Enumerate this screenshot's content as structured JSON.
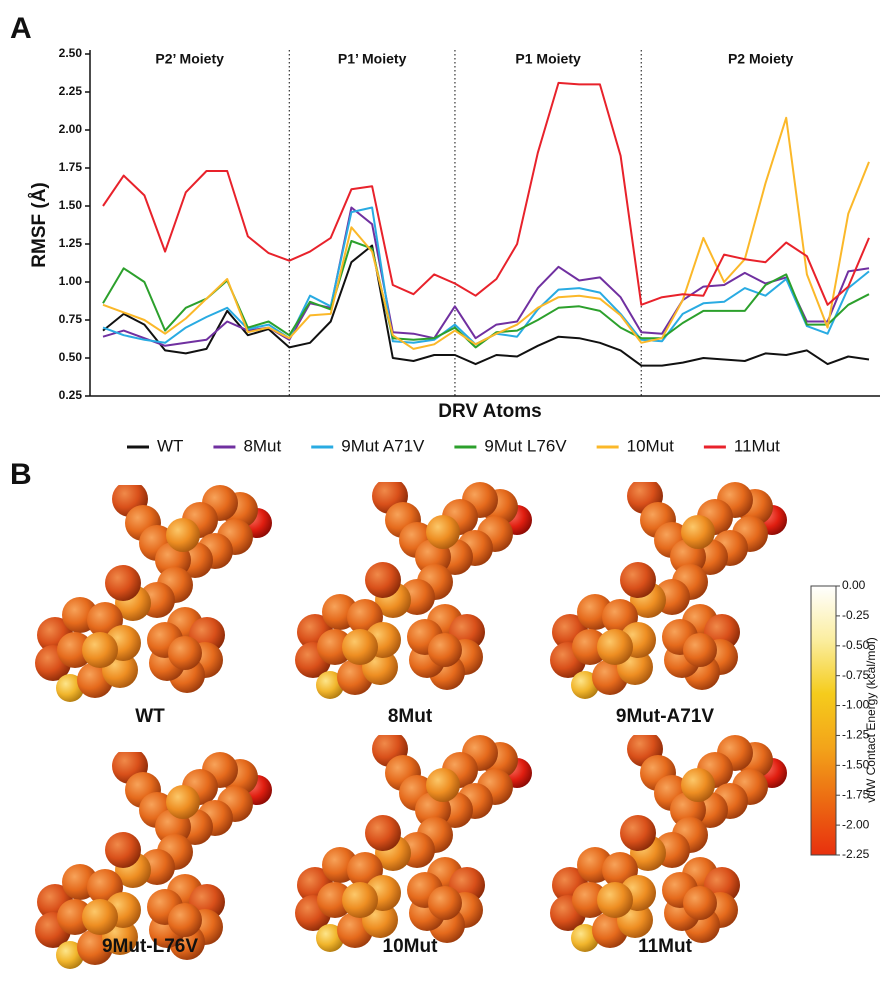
{
  "panels": {
    "a": "A",
    "b": "B"
  },
  "chart_data": [
    {
      "type": "line",
      "xlabel": "DRV Atoms",
      "ylabel": "RMSF (Å)",
      "categories": [
        null,
        null,
        null,
        null,
        null,
        null,
        null,
        null,
        null,
        null,
        null,
        null,
        null,
        null,
        null,
        null,
        null,
        null,
        null,
        null,
        null,
        null,
        null,
        null,
        null,
        null,
        null,
        null,
        null,
        null,
        null,
        null,
        null,
        null,
        null,
        null,
        null,
        null
      ],
      "sections": [
        "P2’ Moiety",
        "P1’ Moiety",
        "P1 Moiety",
        "P2 Moiety"
      ],
      "dividers": [
        9,
        17,
        26
      ],
      "ylim": [
        0.25,
        2.5
      ],
      "yticks": [
        0.25,
        {
          "value": 0.5,
          "label": "0.50"
        },
        0.75,
        {
          "value": 1,
          "label": "1.00"
        },
        1.25,
        {
          "value": 1.5,
          "label": "1.50"
        },
        1.75,
        {
          "value": 2,
          "label": "2.00"
        },
        2.25,
        {
          "value": 2.5,
          "label": "2.50"
        }
      ],
      "series": [
        {
          "name": "WT",
          "color": "#111111",
          "values": [
            0.68,
            0.79,
            0.72,
            0.55,
            0.53,
            0.56,
            0.81,
            0.65,
            0.69,
            0.57,
            0.6,
            0.74,
            1.13,
            1.24,
            0.5,
            0.48,
            0.52,
            0.52,
            0.46,
            0.52,
            0.51,
            0.58,
            0.64,
            0.63,
            0.6,
            0.55,
            0.45,
            0.45,
            0.47,
            0.5,
            0.49,
            0.48,
            0.53,
            0.52,
            0.55,
            0.46,
            0.51,
            0.49
          ]
        },
        {
          "name": "8Mut",
          "color": "#7030a0",
          "values": [
            0.64,
            0.68,
            0.63,
            0.58,
            0.6,
            0.62,
            0.74,
            0.68,
            0.7,
            0.62,
            0.86,
            0.83,
            1.49,
            1.38,
            0.67,
            0.66,
            0.63,
            0.84,
            0.63,
            0.72,
            0.74,
            0.96,
            1.1,
            1.01,
            1.03,
            0.9,
            0.67,
            0.66,
            0.88,
            0.97,
            0.98,
            1.06,
            0.99,
            1.03,
            0.74,
            0.74,
            1.07,
            1.09
          ]
        },
        {
          "name": "9Mut A71V",
          "color": "#29abe2",
          "values": [
            0.7,
            0.65,
            0.62,
            0.6,
            0.7,
            0.77,
            0.83,
            0.69,
            0.72,
            0.63,
            0.91,
            0.84,
            1.46,
            1.49,
            0.61,
            0.6,
            0.62,
            0.72,
            0.59,
            0.66,
            0.64,
            0.82,
            0.95,
            0.96,
            0.93,
            0.79,
            0.62,
            0.61,
            0.79,
            0.86,
            0.87,
            0.96,
            0.91,
            1.02,
            0.71,
            0.66,
            0.96,
            1.07
          ]
        },
        {
          "name": "9Mut L76V",
          "color": "#2ca02c",
          "values": [
            0.86,
            1.09,
            1.0,
            0.68,
            0.83,
            0.89,
            1.01,
            0.7,
            0.74,
            0.65,
            0.87,
            0.82,
            1.27,
            1.22,
            0.63,
            0.62,
            0.63,
            0.7,
            0.57,
            0.67,
            0.68,
            0.75,
            0.83,
            0.84,
            0.81,
            0.7,
            0.63,
            0.63,
            0.73,
            0.81,
            0.81,
            0.81,
            0.98,
            1.05,
            0.72,
            0.72,
            0.85,
            0.92
          ]
        },
        {
          "name": "10Mut",
          "color": "#fbb829",
          "values": [
            0.85,
            0.8,
            0.75,
            0.66,
            0.76,
            0.89,
            1.02,
            0.67,
            0.7,
            0.63,
            0.78,
            0.79,
            1.36,
            1.2,
            0.65,
            0.56,
            0.59,
            0.68,
            0.59,
            0.66,
            0.72,
            0.83,
            0.9,
            0.91,
            0.89,
            0.78,
            0.6,
            0.63,
            0.88,
            1.29,
            1.0,
            1.15,
            1.65,
            2.08,
            1.05,
            0.7,
            1.45,
            1.79
          ]
        },
        {
          "name": "11Mut",
          "color": "#e8222b",
          "values": [
            1.5,
            1.7,
            1.57,
            1.2,
            1.59,
            1.73,
            1.73,
            1.3,
            1.19,
            1.14,
            1.2,
            1.29,
            1.61,
            1.63,
            0.98,
            0.92,
            1.05,
            0.99,
            0.91,
            1.02,
            1.25,
            1.85,
            2.31,
            2.3,
            2.3,
            1.83,
            0.85,
            0.9,
            0.92,
            0.91,
            1.18,
            1.15,
            1.13,
            1.26,
            1.17,
            0.85,
            0.97,
            1.29
          ]
        }
      ]
    },
    {
      "type": "colorbar",
      "label": "vdW Contact Energy (kcal/mol)",
      "lim": [
        -2.25,
        0
      ],
      "colors": [
        "#e8300e",
        "#ec6a12",
        "#f3a41a",
        "#f5cc1c",
        "#fbeea0",
        "#ffffff"
      ],
      "ticks": [
        {
          "value": 0,
          "label": "0.00"
        },
        -0.25,
        {
          "value": -0.5,
          "label": "-0.50"
        },
        -0.75,
        {
          "value": -1,
          "label": "-1.00"
        },
        -1.25,
        {
          "value": -1.5,
          "label": "-1.50"
        },
        -1.75,
        {
          "value": -2,
          "label": "-2.00"
        },
        -2.25
      ]
    }
  ],
  "structures": [
    "WT",
    "8Mut",
    "9Mut-A71V",
    "9Mut-L76V",
    "10Mut",
    "11Mut"
  ]
}
